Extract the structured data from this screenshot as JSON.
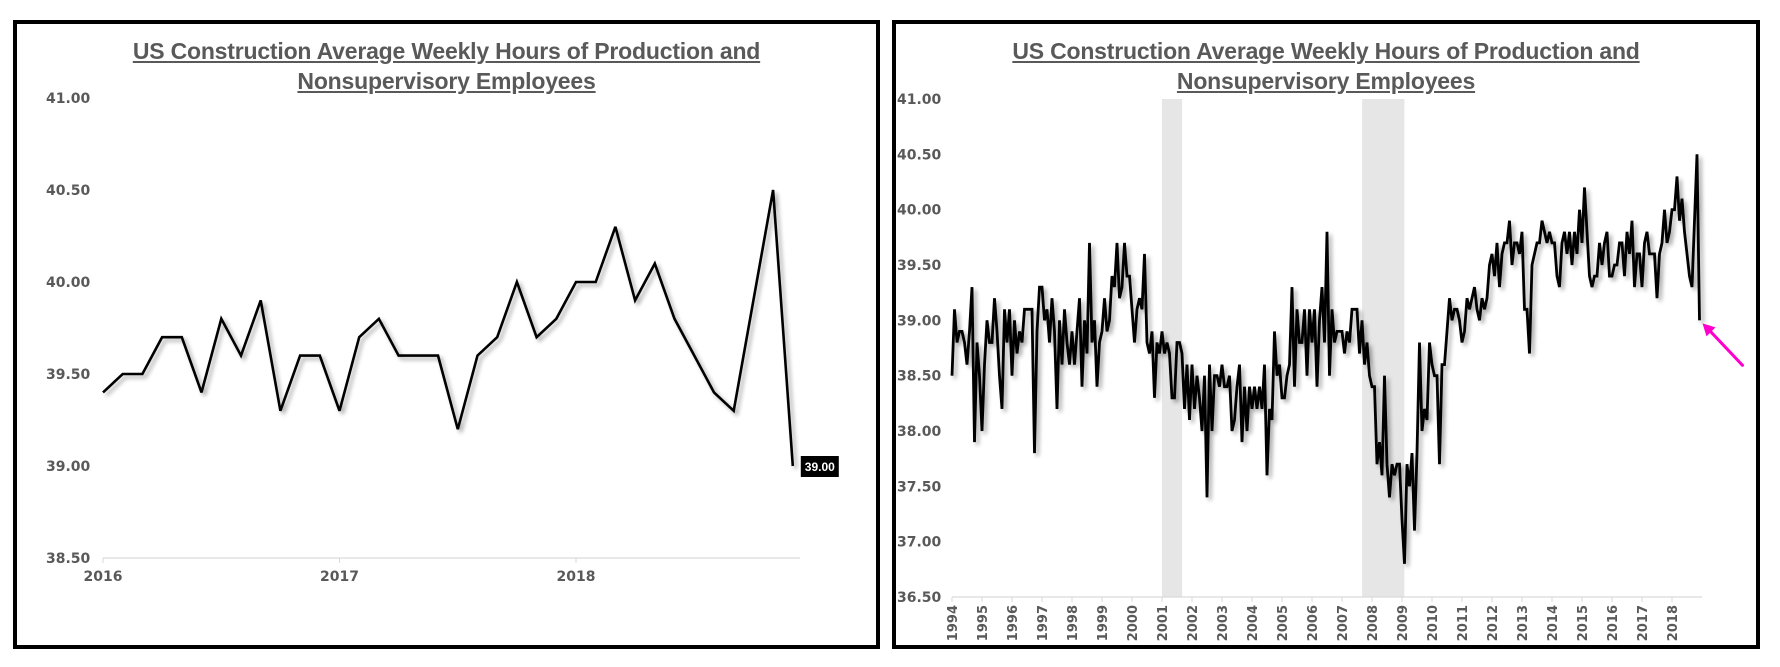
{
  "chart_data": [
    {
      "type": "line",
      "title": "US Construction Average Weekly Hours of Production and Nonsupervisory Employees",
      "title_lines": [
        "US Construction Average Weekly Hours of Production and",
        "Nonsupervisory Employees"
      ],
      "xlabel": "",
      "ylabel": "",
      "ylim": [
        38.5,
        41.0
      ],
      "yticks": [
        "41.00",
        "40.50",
        "40.00",
        "39.50",
        "39.00",
        "38.50"
      ],
      "ytick_values": [
        41.0,
        40.5,
        40.0,
        39.5,
        39.0,
        38.5
      ],
      "xticks": [
        "2016",
        "2017",
        "2018"
      ],
      "xtick_values": [
        2016,
        2017,
        2018
      ],
      "x_start": "2016-01",
      "x_frequency": "monthly",
      "grid": false,
      "line_color": "#000000",
      "last_value_label": "39.00",
      "series": [
        {
          "name": "Average Weekly Hours",
          "values": [
            39.4,
            39.5,
            39.5,
            39.7,
            39.7,
            39.4,
            39.8,
            39.6,
            39.9,
            39.3,
            39.6,
            39.6,
            39.3,
            39.7,
            39.8,
            39.6,
            39.6,
            39.6,
            39.2,
            39.6,
            39.7,
            40.0,
            39.7,
            39.8,
            40.0,
            40.0,
            40.3,
            39.9,
            40.1,
            39.8,
            39.6,
            39.4,
            39.3,
            39.9,
            40.5,
            39.0
          ]
        }
      ]
    },
    {
      "type": "line",
      "title": "US Construction Average Weekly Hours of Production and Nonsupervisory Employees",
      "title_lines": [
        "US Construction Average Weekly Hours of Production and",
        "Nonsupervisory Employees"
      ],
      "xlabel": "",
      "ylabel": "",
      "ylim": [
        36.5,
        41.0
      ],
      "yticks": [
        "41.00",
        "40.50",
        "40.00",
        "39.50",
        "39.00",
        "38.50",
        "38.00",
        "37.50",
        "37.00",
        "36.50"
      ],
      "ytick_values": [
        41.0,
        40.5,
        40.0,
        39.5,
        39.0,
        38.5,
        38.0,
        37.5,
        37.0,
        36.5
      ],
      "xticks": [
        "1994",
        "1995",
        "1996",
        "1997",
        "1998",
        "1999",
        "2000",
        "2001",
        "2002",
        "2003",
        "2004",
        "2005",
        "2006",
        "2007",
        "2008",
        "2009",
        "2010",
        "2011",
        "2012",
        "2013",
        "2014",
        "2015",
        "2016",
        "2017",
        "2018"
      ],
      "xtick_values": [
        1994,
        1995,
        1996,
        1997,
        1998,
        1999,
        2000,
        2001,
        2002,
        2003,
        2004,
        2005,
        2006,
        2007,
        2008,
        2009,
        2010,
        2011,
        2012,
        2013,
        2014,
        2015,
        2016,
        2017,
        2018
      ],
      "x_start": "1994-01",
      "x_frequency": "monthly",
      "grid": false,
      "line_color": "#000000",
      "shaded_periods": [
        {
          "label": "recession",
          "start": 2001.0,
          "end": 2001.67,
          "color": "#e6e6e6"
        },
        {
          "label": "recession",
          "start": 2007.67,
          "end": 2009.08,
          "color": "#e6e6e6"
        }
      ],
      "annotation": {
        "type": "arrow",
        "color": "#ff00cc",
        "points_to": "last value (Dec 2018)"
      },
      "series": [
        {
          "name": "Average Weekly Hours",
          "values": [
            38.5,
            39.1,
            38.8,
            38.9,
            38.9,
            38.8,
            38.6,
            38.9,
            39.3,
            37.9,
            38.8,
            38.5,
            38.0,
            38.6,
            39.0,
            38.8,
            38.8,
            39.2,
            38.9,
            38.5,
            38.2,
            39.1,
            38.8,
            39.1,
            38.5,
            39.0,
            38.7,
            38.9,
            38.8,
            39.1,
            39.1,
            39.1,
            39.1,
            37.8,
            38.9,
            39.3,
            39.3,
            39.0,
            39.1,
            38.8,
            39.2,
            38.9,
            38.2,
            39.0,
            38.6,
            39.1,
            38.8,
            38.6,
            38.9,
            38.6,
            38.9,
            39.2,
            38.4,
            39.0,
            38.7,
            39.7,
            38.8,
            39.0,
            38.4,
            38.8,
            38.9,
            39.2,
            38.9,
            39.0,
            39.4,
            39.3,
            39.7,
            39.2,
            39.3,
            39.7,
            39.4,
            39.4,
            39.1,
            38.8,
            39.1,
            39.2,
            39.1,
            39.6,
            38.8,
            38.7,
            38.9,
            38.3,
            38.8,
            38.7,
            38.9,
            38.7,
            38.8,
            38.7,
            38.3,
            38.3,
            38.8,
            38.8,
            38.7,
            38.2,
            38.6,
            38.1,
            38.6,
            38.2,
            38.5,
            38.3,
            38.0,
            38.5,
            37.4,
            38.6,
            38.0,
            38.5,
            38.5,
            38.4,
            38.6,
            38.4,
            38.4,
            38.5,
            38.0,
            38.1,
            38.4,
            38.6,
            37.9,
            38.4,
            38.0,
            38.4,
            38.2,
            38.4,
            38.2,
            38.4,
            38.2,
            38.6,
            37.6,
            38.2,
            38.1,
            38.9,
            38.5,
            38.6,
            38.3,
            38.3,
            38.5,
            38.6,
            39.3,
            38.4,
            39.1,
            38.8,
            38.8,
            39.1,
            38.5,
            39.1,
            38.8,
            39.1,
            38.4,
            39.0,
            39.3,
            38.8,
            39.8,
            38.5,
            39.1,
            38.8,
            38.9,
            38.9,
            38.9,
            38.7,
            38.9,
            38.8,
            39.1,
            39.1,
            39.1,
            38.7,
            39.0,
            38.6,
            38.8,
            38.5,
            38.4,
            38.4,
            37.7,
            37.9,
            37.6,
            38.5,
            37.7,
            37.4,
            37.7,
            37.6,
            37.7,
            37.7,
            37.2,
            36.8,
            37.7,
            37.5,
            37.8,
            37.1,
            37.8,
            38.8,
            38.0,
            38.2,
            38.1,
            38.8,
            38.6,
            38.5,
            38.5,
            37.7,
            38.6,
            38.6,
            38.9,
            39.2,
            39.0,
            39.1,
            39.1,
            39.0,
            38.8,
            38.9,
            39.2,
            39.1,
            39.2,
            39.3,
            39.1,
            39.0,
            39.2,
            39.1,
            39.2,
            39.5,
            39.6,
            39.4,
            39.7,
            39.3,
            39.6,
            39.7,
            39.7,
            39.9,
            39.5,
            39.7,
            39.7,
            39.6,
            39.8,
            39.1,
            39.1,
            38.7,
            39.5,
            39.6,
            39.7,
            39.7,
            39.9,
            39.8,
            39.7,
            39.8,
            39.7,
            39.7,
            39.4,
            39.3,
            39.7,
            39.8,
            39.6,
            39.8,
            39.5,
            39.8,
            39.6,
            40.0,
            39.7,
            40.2,
            39.8,
            39.4,
            39.3,
            39.4,
            39.4,
            39.7,
            39.5,
            39.7,
            39.8,
            39.4,
            39.4,
            39.5,
            39.5,
            39.7,
            39.7,
            39.4,
            39.8,
            39.6,
            39.9,
            39.3,
            39.6,
            39.6,
            39.3,
            39.7,
            39.8,
            39.6,
            39.6,
            39.6,
            39.2,
            39.6,
            39.7,
            40.0,
            39.7,
            39.8,
            40.0,
            40.0,
            40.3,
            39.9,
            40.1,
            39.8,
            39.6,
            39.4,
            39.3,
            39.9,
            40.5,
            39.0
          ]
        }
      ]
    }
  ]
}
